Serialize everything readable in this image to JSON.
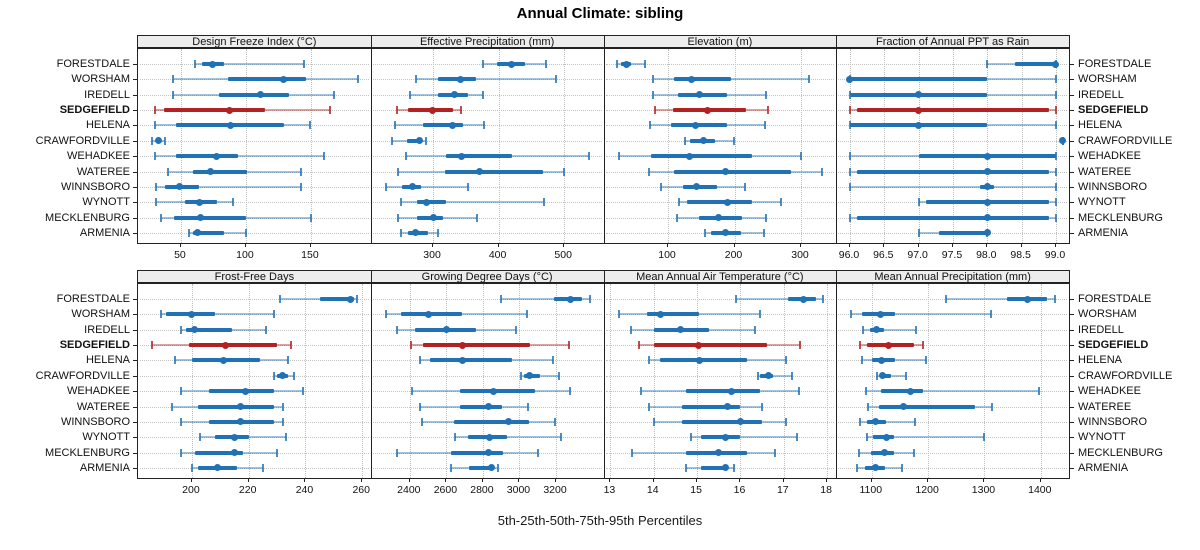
{
  "title": "Annual Climate: sibling",
  "footer": "5th-25th-50th-75th-95th Percentiles",
  "sites": [
    "FORESTDALE",
    "WORSHAM",
    "IREDELL",
    "SEDGEFIELD",
    "HELENA",
    "CRAWFORDVILLE",
    "WEHADKEE",
    "WATEREE",
    "WINNSBORO",
    "WYNOTT",
    "MECKLENBURG",
    "ARMENIA"
  ],
  "highlight_site": "SEDGEFIELD",
  "colors": {
    "series": "#2171b5",
    "highlight": "#b22222",
    "grid": "#c0c0c0",
    "strip_bg": "#ededed",
    "border": "#222222"
  },
  "chart_data": {
    "type": "dotplot-percentiles",
    "percentiles": [
      5,
      25,
      50,
      75,
      95
    ],
    "legend_note": "each row shows 5th-25th-50th-75th-95th percentile range; dot = median",
    "panels": [
      {
        "title": "Design Freeze Index (°C)",
        "band": "top",
        "ticks": [
          50,
          100,
          150
        ],
        "tick_labels": [
          "50",
          "100",
          "150"
        ],
        "xlim": [
          17,
          196
        ],
        "series": [
          [
            61,
            66,
            74,
            83,
            145
          ],
          [
            44,
            86,
            129,
            146,
            186
          ],
          [
            44,
            79,
            111,
            133,
            168
          ],
          [
            30,
            37,
            87,
            115,
            165
          ],
          [
            30,
            46,
            88,
            129,
            149
          ],
          [
            28,
            31,
            33,
            35,
            38
          ],
          [
            30,
            46,
            77,
            94,
            160
          ],
          [
            40,
            59,
            73,
            101,
            142
          ],
          [
            31,
            38,
            49,
            64,
            142
          ],
          [
            31,
            53,
            64,
            78,
            90
          ],
          [
            35,
            45,
            65,
            100,
            150
          ],
          [
            56,
            59,
            63,
            83,
            100
          ]
        ]
      },
      {
        "title": "Effective Precipitation (mm)",
        "band": "top",
        "ticks": [
          300,
          400,
          500
        ],
        "tick_labels": [
          "300",
          "400",
          "500"
        ],
        "xlim": [
          205,
          560
        ],
        "series": [
          [
            376,
            398,
            420,
            441,
            472
          ],
          [
            274,
            308,
            342,
            366,
            487
          ],
          [
            265,
            308,
            333,
            353,
            376
          ],
          [
            245,
            262,
            299,
            330,
            343
          ],
          [
            242,
            285,
            329,
            345,
            378
          ],
          [
            238,
            260,
            279,
            283,
            290
          ],
          [
            259,
            320,
            344,
            421,
            538
          ],
          [
            247,
            318,
            371,
            467,
            499
          ],
          [
            229,
            252,
            268,
            282,
            353
          ],
          [
            251,
            275,
            290,
            320,
            470
          ],
          [
            247,
            275,
            300,
            315,
            367
          ],
          [
            251,
            262,
            273,
            292,
            307
          ]
        ]
      },
      {
        "title": "Elevation (m)",
        "band": "top",
        "ticks": [
          100,
          200,
          300
        ],
        "tick_labels": [
          "100",
          "200",
          "300"
        ],
        "xlim": [
          3,
          353
        ],
        "series": [
          [
            23,
            30,
            37,
            45,
            65
          ],
          [
            78,
            109,
            136,
            195,
            312
          ],
          [
            77,
            115,
            148,
            189,
            248
          ],
          [
            80,
            107,
            160,
            217,
            250
          ],
          [
            73,
            105,
            141,
            189,
            246
          ],
          [
            125,
            133,
            154,
            170,
            199
          ],
          [
            27,
            75,
            132,
            227,
            300
          ],
          [
            72,
            109,
            186,
            285,
            332
          ],
          [
            90,
            122,
            143,
            173,
            216
          ],
          [
            116,
            129,
            190,
            227,
            270
          ],
          [
            114,
            147,
            176,
            212,
            248
          ],
          [
            155,
            165,
            187,
            210,
            245
          ]
        ]
      },
      {
        "title": "Fraction of Annual PPT as Rain",
        "band": "top",
        "ticks": [
          96,
          96.5,
          97,
          97.5,
          98,
          98.5,
          99
        ],
        "tick_labels": [
          "96.0",
          "96.5",
          "97.0",
          "97.5",
          "98.0",
          "98.5",
          "99.0"
        ],
        "xlim": [
          95.8,
          99.19
        ],
        "series": [
          [
            98,
            98.4,
            99,
            99,
            99
          ],
          [
            96,
            96,
            96,
            98,
            99
          ],
          [
            96,
            96,
            97,
            98,
            99
          ],
          [
            96,
            96.1,
            97,
            98.9,
            99
          ],
          [
            96,
            96,
            97,
            98,
            99
          ],
          [
            99.1,
            99.1,
            99.1,
            99.1,
            99.1
          ],
          [
            96,
            97,
            98,
            99,
            99
          ],
          [
            96,
            96.1,
            98,
            98.9,
            99
          ],
          [
            96,
            97.9,
            98,
            98.1,
            99
          ],
          [
            97,
            97.1,
            98,
            98.9,
            99
          ],
          [
            96,
            96.1,
            98,
            98.9,
            99
          ],
          [
            97,
            97.3,
            98,
            98,
            98
          ]
        ]
      },
      {
        "title": "Frost-Free Days",
        "band": "bottom",
        "ticks": [
          200,
          220,
          240,
          260
        ],
        "tick_labels": [
          "200",
          "220",
          "240",
          "260"
        ],
        "xlim": [
          181,
          263
        ],
        "series": [
          [
            231,
            245,
            256,
            257,
            258
          ],
          [
            189,
            191,
            200,
            208,
            229
          ],
          [
            196,
            198,
            201,
            214,
            226
          ],
          [
            186,
            199,
            212,
            230,
            235
          ],
          [
            194,
            200,
            211,
            224,
            234
          ],
          [
            229,
            230,
            232,
            234,
            236
          ],
          [
            196,
            206,
            219,
            229,
            239
          ],
          [
            193,
            202,
            217,
            229,
            232
          ],
          [
            196,
            206,
            217,
            229,
            232
          ],
          [
            203,
            208,
            215,
            220,
            233
          ],
          [
            196,
            201,
            215,
            218,
            230
          ],
          [
            200,
            202,
            209,
            216,
            225
          ]
        ]
      },
      {
        "title": "Growing Degree Days (°C)",
        "band": "bottom",
        "ticks": [
          2400,
          2600,
          2800,
          3000,
          3200
        ],
        "tick_labels": [
          "2400",
          "2600",
          "2800",
          "3000",
          "3200"
        ],
        "xlim": [
          2186,
          3460
        ],
        "series": [
          [
            2900,
            3190,
            3280,
            3340,
            3385
          ],
          [
            2267,
            2354,
            2500,
            2686,
            3039
          ],
          [
            2330,
            2430,
            2600,
            2760,
            2980
          ],
          [
            2405,
            2470,
            2690,
            3060,
            3270
          ],
          [
            2458,
            2513,
            2690,
            2960,
            3183
          ],
          [
            3010,
            3027,
            3055,
            3115,
            3216
          ],
          [
            2413,
            2677,
            2860,
            3084,
            3274
          ],
          [
            2458,
            2677,
            2828,
            2905,
            3047
          ],
          [
            2467,
            2640,
            2941,
            3050,
            3192
          ],
          [
            2646,
            2720,
            2837,
            2930,
            3230
          ],
          [
            2327,
            2627,
            2833,
            2910,
            3100
          ],
          [
            2627,
            2722,
            2847,
            2860,
            2884
          ]
        ]
      },
      {
        "title": "Mean Annual Air Temperature (°C)",
        "band": "bottom",
        "ticks": [
          13,
          14,
          15,
          16,
          17,
          18
        ],
        "tick_labels": [
          "13",
          "14",
          "15",
          "16",
          "17",
          "18"
        ],
        "xlim": [
          12.84,
          18.21
        ],
        "series": [
          [
            15.9,
            17.1,
            17.45,
            17.75,
            17.9
          ],
          [
            13.2,
            13.85,
            14.15,
            15.05,
            16.45
          ],
          [
            13.47,
            14.0,
            14.62,
            15.27,
            16.33
          ],
          [
            13.65,
            14.0,
            15.04,
            16.62,
            17.37
          ],
          [
            13.9,
            14.15,
            15.05,
            16.15,
            17.05
          ],
          [
            16.4,
            16.45,
            16.65,
            16.75,
            17.2
          ],
          [
            13.7,
            14.75,
            15.8,
            16.45,
            17.35
          ],
          [
            13.9,
            14.65,
            15.7,
            16.0,
            16.5
          ],
          [
            14.0,
            14.65,
            16.0,
            16.5,
            17.05
          ],
          [
            14.85,
            15.1,
            15.65,
            16.0,
            17.3
          ],
          [
            13.5,
            14.75,
            15.5,
            16.15,
            16.8
          ],
          [
            14.75,
            15.1,
            15.65,
            15.7,
            15.85
          ]
        ]
      },
      {
        "title": "Mean Annual Precipitation (mm)",
        "band": "bottom",
        "ticks": [
          1100,
          1200,
          1300,
          1400
        ],
        "tick_labels": [
          "1100",
          "1200",
          "1300",
          "1400"
        ],
        "xlim": [
          1037,
          1450
        ],
        "series": [
          [
            1232,
            1340,
            1377,
            1411,
            1426
          ],
          [
            1063,
            1083,
            1116,
            1142,
            1312
          ],
          [
            1085,
            1096,
            1108,
            1122,
            1178
          ],
          [
            1080,
            1092,
            1130,
            1175,
            1191
          ],
          [
            1083,
            1100,
            1117,
            1142,
            1196
          ],
          [
            1110,
            1114,
            1119,
            1134,
            1160
          ],
          [
            1089,
            1116,
            1169,
            1191,
            1397
          ],
          [
            1094,
            1112,
            1157,
            1284,
            1314
          ],
          [
            1080,
            1092,
            1107,
            1125,
            1177
          ],
          [
            1091,
            1102,
            1126,
            1140,
            1299
          ],
          [
            1078,
            1098,
            1122,
            1140,
            1175
          ],
          [
            1073,
            1088,
            1106,
            1124,
            1154
          ]
        ]
      }
    ]
  }
}
